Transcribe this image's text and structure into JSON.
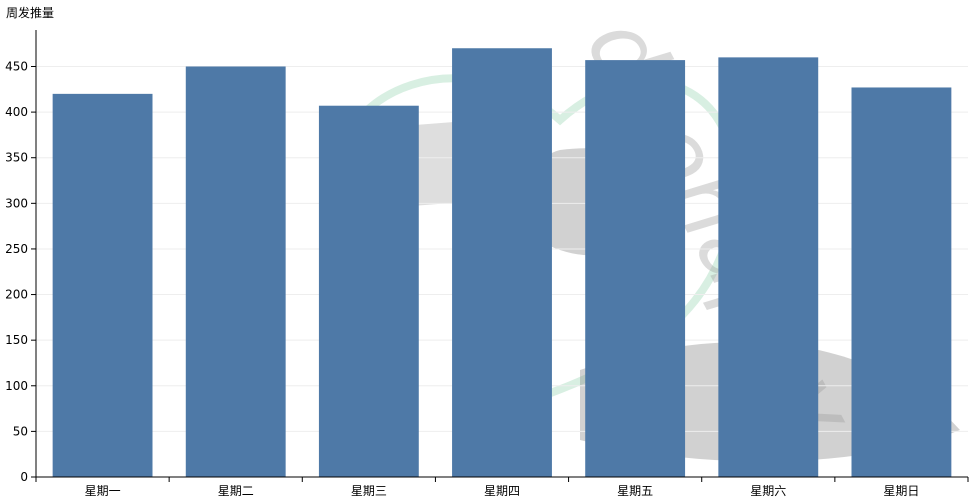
{
  "chart_data": {
    "type": "bar",
    "ylabel": "周发推量",
    "categories": [
      "星期一",
      "星期二",
      "星期三",
      "星期四",
      "星期五",
      "星期六",
      "星期日"
    ],
    "values": [
      420,
      450,
      407,
      470,
      457,
      460,
      427
    ],
    "ylim": [
      0,
      490
    ],
    "yticks": [
      0,
      50,
      100,
      150,
      200,
      250,
      300,
      350,
      400,
      450
    ],
    "grid": true,
    "bar_color": "#4e79a7"
  },
  "watermark": {
    "text": "duohappy",
    "color": "#9a9a9a"
  }
}
